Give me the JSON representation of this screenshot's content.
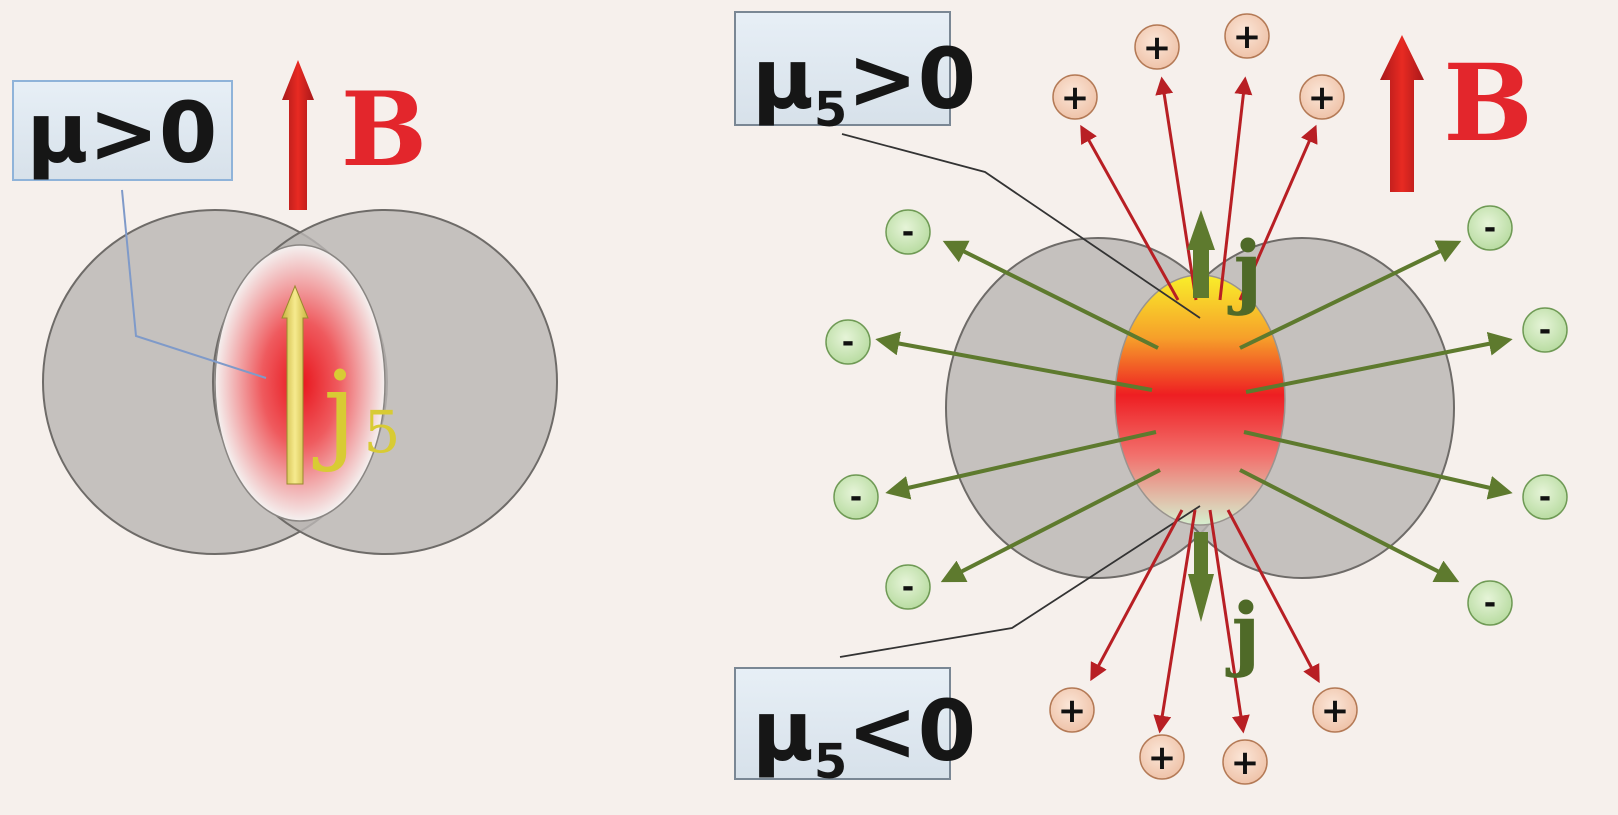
{
  "left_panel": {
    "chemical_potential_label": "μ>0",
    "field_label": "B",
    "current_label": "j",
    "current_subscript": "5"
  },
  "right_panel": {
    "top_label_main": "μ",
    "top_label_sub": "5",
    "top_label_rel": ">0",
    "bottom_label_main": "μ",
    "bottom_label_sub": "5",
    "bottom_label_rel": "<0",
    "field_label": "B",
    "current_up_label": "j",
    "current_down_label": "j",
    "positive_charge_symbol": "+",
    "negative_charge_symbol": "-"
  },
  "colors": {
    "field_arrow": "#d42020",
    "chiral_current": "#f2e27a",
    "positive_emission": "#b81f24",
    "negative_emission": "#5e7a2e",
    "nucleus": "#b9b6b3"
  }
}
